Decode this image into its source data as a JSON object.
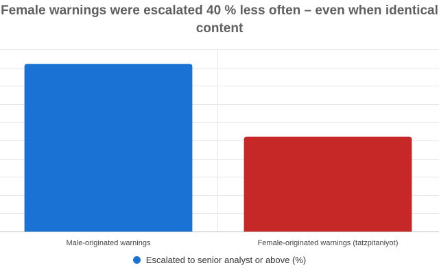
{
  "chart_data": {
    "type": "bar",
    "title_lines": [
      "Female warnings were escalated 40 % less often – even when identical",
      "content"
    ],
    "categories": [
      "Male-originated warnings",
      "Female-originated warnings (tatzpitaniyot)"
    ],
    "series": [
      {
        "name": "Escalated to senior analyst or above (%)",
        "values": [
          92,
          52
        ],
        "colors": [
          "#1a73d4",
          "#c62828"
        ]
      }
    ],
    "ylim": [
      0,
      100
    ],
    "grid": true,
    "legend_position": "bottom",
    "legend_color": "#1a73d4"
  }
}
